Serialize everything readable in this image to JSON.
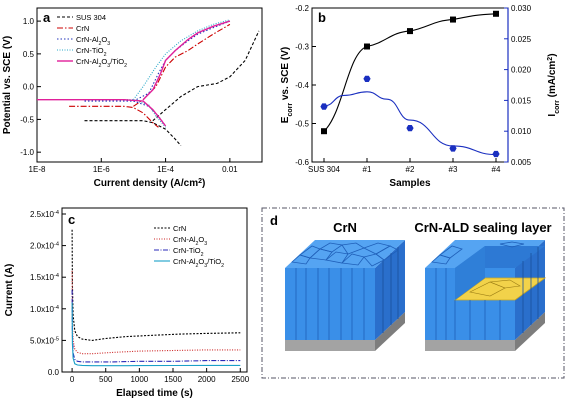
{
  "chart_data": [
    {
      "id": "a",
      "type": "line",
      "panel_label": "a",
      "xlabel": "Current density (A/cm",
      "xlabel_sup": "2",
      "xlabel_end": ")",
      "ylabel": "Potential vs. SCE (V)",
      "xscale": "log",
      "xlim": [
        1e-08,
        0.1
      ],
      "ylim": [
        -1.15,
        1.2
      ],
      "xticks": [
        {
          "v": 1e-08,
          "t": "1E-8"
        },
        {
          "v": 1e-06,
          "t": "1E-6"
        },
        {
          "v": 0.0001,
          "t": "1E-4"
        },
        {
          "v": 0.01,
          "t": "0.01"
        }
      ],
      "yticks": [
        {
          "v": -1.0,
          "t": "-1.0"
        },
        {
          "v": -0.5,
          "t": "-0.5"
        },
        {
          "v": 0.0,
          "t": "0.0"
        },
        {
          "v": 0.5,
          "t": "0.5"
        },
        {
          "v": 1.0,
          "t": "1.0"
        }
      ],
      "legend": "top-left",
      "series": [
        {
          "name": "SUS 304",
          "color": "#000000",
          "dash": "3,2",
          "x": [
            3e-07,
            3e-06,
            1e-05,
            2e-05,
            4e-05,
            0.0001,
            0.0002,
            0.0003
          ],
          "y": [
            -0.52,
            -0.52,
            -0.52,
            -0.52,
            -0.55,
            -0.65,
            -0.8,
            -0.9
          ],
          "x2": [
            4e-05,
            0.0001,
            0.0003,
            0.001,
            0.004,
            0.01,
            0.03,
            0.08
          ],
          "y2": [
            -0.52,
            -0.35,
            -0.15,
            0.0,
            0.05,
            0.15,
            0.4,
            0.85
          ]
        },
        {
          "name": "CrN",
          "color": "#cc0000",
          "dash": "6,2,1.5,2",
          "x": [
            1e-07,
            1e-06,
            5e-06,
            1e-05,
            2e-05,
            4e-05,
            6e-05
          ],
          "y": [
            -0.3,
            -0.3,
            -0.3,
            -0.32,
            -0.4,
            -0.55,
            -0.62
          ],
          "x2": [
            1e-05,
            2e-05,
            5e-05,
            0.0001,
            0.0002,
            0.0005,
            0.001,
            0.003,
            0.01
          ],
          "y2": [
            -0.3,
            -0.2,
            0.0,
            0.3,
            0.45,
            0.55,
            0.65,
            0.8,
            0.95
          ]
        },
        {
          "name": "CrN-Al",
          "sub": "2",
          "name2": "O",
          "sub2": "3",
          "color": "#2233bb",
          "dash": "1.5,2",
          "x": [
            3e-07,
            2e-06,
            1e-05,
            3e-05,
            6e-05,
            0.0001
          ],
          "y": [
            -0.22,
            -0.22,
            -0.22,
            -0.3,
            -0.45,
            -0.6
          ],
          "x2": [
            1e-05,
            3e-05,
            6e-05,
            0.0001,
            0.0002,
            0.0005,
            0.001,
            0.003,
            0.01
          ],
          "y2": [
            -0.22,
            -0.1,
            0.2,
            0.4,
            0.55,
            0.7,
            0.8,
            0.9,
            1.0
          ]
        },
        {
          "name": "CrN-TiO",
          "sub": "2",
          "color": "#2aa8c8",
          "dash": "1,1.5",
          "x": [
            3e-07,
            2e-06,
            1e-05,
            3e-05,
            5e-05,
            0.0001
          ],
          "y": [
            -0.2,
            -0.2,
            -0.2,
            -0.28,
            -0.45,
            -0.62
          ],
          "x2": [
            1e-05,
            2e-05,
            5e-05,
            0.0001,
            0.0003,
            0.001,
            0.003,
            0.01
          ],
          "y2": [
            -0.2,
            0.0,
            0.3,
            0.5,
            0.7,
            0.85,
            0.95,
            1.02
          ]
        },
        {
          "name": "CrN-Al",
          "sub": "2",
          "name2": "O",
          "sub2": "3",
          "name3": "/TiO",
          "sub3": "2",
          "color": "#e0209a",
          "dash": "",
          "x": [
            1e-08,
            1e-07,
            1e-06,
            5e-06,
            2e-05,
            4e-05,
            7e-05,
            0.0001
          ],
          "y": [
            -0.2,
            -0.2,
            -0.2,
            -0.2,
            -0.22,
            -0.35,
            -0.5,
            -0.6
          ],
          "x2": [
            2e-05,
            4e-05,
            7e-05,
            0.0001,
            0.0002,
            0.0005,
            0.001,
            0.003,
            0.01
          ],
          "y2": [
            -0.2,
            -0.05,
            0.2,
            0.4,
            0.55,
            0.72,
            0.82,
            0.92,
            1.0
          ]
        }
      ]
    },
    {
      "id": "b",
      "type": "scatter",
      "panel_label": "b",
      "categories": [
        "SUS 304",
        "#1",
        "#2",
        "#3",
        "#4"
      ],
      "xlabel": "Samples",
      "ylabel_left": "E",
      "ylabel_left_sub": "corr",
      "ylabel_left_end": " vs. SCE (V)",
      "ylabel_right": "I",
      "ylabel_right_sub": "corr",
      "ylabel_right_end": " (mA/cm",
      "ylabel_right_sup": "2",
      "ylabel_right_close": ")",
      "ylim_left": [
        -0.6,
        -0.2
      ],
      "ylim_right": [
        0.005,
        0.03
      ],
      "yticks_left": [
        {
          "v": -0.6,
          "t": "-0.6"
        },
        {
          "v": -0.5,
          "t": "-0.5"
        },
        {
          "v": -0.4,
          "t": "-0.4"
        },
        {
          "v": -0.3,
          "t": "-0.3"
        },
        {
          "v": -0.2,
          "t": "-0.2"
        }
      ],
      "yticks_right": [
        {
          "v": 0.005,
          "t": "0.005"
        },
        {
          "v": 0.01,
          "t": "0.010"
        },
        {
          "v": 0.015,
          "t": "0.015"
        },
        {
          "v": 0.02,
          "t": "0.020"
        },
        {
          "v": 0.025,
          "t": "0.025"
        },
        {
          "v": 0.03,
          "t": "0.030"
        }
      ],
      "series": [
        {
          "axis": "left",
          "color": "#000000",
          "marker": "square",
          "values": [
            -0.52,
            -0.3,
            -0.26,
            -0.23,
            -0.215
          ]
        },
        {
          "axis": "right",
          "color": "#1a2fc0",
          "marker": "hexagon",
          "values": [
            0.014,
            0.0185,
            0.0105,
            0.0072,
            0.0063
          ]
        }
      ],
      "right_axis_color": "#1a2fc0"
    },
    {
      "id": "c",
      "type": "line",
      "panel_label": "c",
      "xlabel": "Elapsed time (s)",
      "ylabel": "Current (A)",
      "xlim": [
        -150,
        2600
      ],
      "ylim": [
        0,
        0.00025
      ],
      "xticks": [
        {
          "v": 0,
          "t": "0"
        },
        {
          "v": 500,
          "t": "500"
        },
        {
          "v": 1000,
          "t": "1000"
        },
        {
          "v": 1500,
          "t": "1500"
        },
        {
          "v": 2000,
          "t": "2000"
        },
        {
          "v": 2500,
          "t": "2500"
        }
      ],
      "yticks": [
        {
          "v": 0,
          "t": "0.0",
          "exp": ""
        },
        {
          "v": 5e-05,
          "t": "5.0x10",
          "exp": "-5"
        },
        {
          "v": 0.0001,
          "t": "1.0x10",
          "exp": "-4"
        },
        {
          "v": 0.00015,
          "t": "1.5x10",
          "exp": "-4"
        },
        {
          "v": 0.0002,
          "t": "2.0x10",
          "exp": "-4"
        },
        {
          "v": 0.00025,
          "t": "2.5x10",
          "exp": "-4"
        }
      ],
      "legend": "top-right",
      "series": [
        {
          "name": "CrN",
          "color": "#000000",
          "dash": "2,1.5",
          "x": [
            0,
            5,
            15,
            40,
            80,
            150,
            300,
            500,
            800,
            1200,
            1600,
            2000,
            2500
          ],
          "y": [
            0.000225,
            0.00014,
            9e-05,
            6.5e-05,
            5.6e-05,
            5.2e-05,
            5e-05,
            5.3e-05,
            5.6e-05,
            5.8e-05,
            6e-05,
            6.1e-05,
            6.2e-05
          ]
        },
        {
          "name": "CrN-Al",
          "sub": "2",
          "name2": "O",
          "sub2": "3",
          "color": "#cc2222",
          "dash": "1,1.5",
          "x": [
            0,
            5,
            15,
            40,
            80,
            150,
            300,
            600,
            1000,
            1500,
            2000,
            2500
          ],
          "y": [
            0.00016,
            8e-05,
            5e-05,
            3.6e-05,
            3.1e-05,
            2.9e-05,
            2.9e-05,
            3.1e-05,
            3.3e-05,
            3.4e-05,
            3.5e-05,
            3.5e-05
          ]
        },
        {
          "name": "CrN-TiO",
          "sub": "2",
          "color": "#2a2ab8",
          "dash": "5,1.5,1,1.5",
          "x": [
            0,
            5,
            15,
            40,
            80,
            150,
            300,
            600,
            1000,
            1500,
            2000,
            2500
          ],
          "y": [
            0.00013,
            6e-05,
            3e-05,
            2e-05,
            1.7e-05,
            1.6e-05,
            1.6e-05,
            1.6e-05,
            1.7e-05,
            1.7e-05,
            1.8e-05,
            1.8e-05
          ]
        },
        {
          "name": "CrN-Al",
          "sub": "2",
          "name2": "O",
          "sub2": "3",
          "name3": "/TiO",
          "sub3": "2",
          "color": "#1aa0c8",
          "dash": "",
          "x": [
            0,
            5,
            15,
            40,
            80,
            150,
            300,
            600,
            1000,
            1500,
            2000,
            2500
          ],
          "y": [
            0.00011,
            4.5e-05,
            2.2e-05,
            1.3e-05,
            1.1e-05,
            1.05e-05,
            1e-05,
            1e-05,
            1.02e-05,
            1.03e-05,
            1.04e-05,
            1.05e-05
          ]
        }
      ]
    }
  ],
  "panel_d": {
    "panel_label": "d",
    "left_title": "CrN",
    "right_title": "CrN-ALD sealing layer",
    "colors": {
      "coating": "#3a8fe8",
      "coating_dark": "#1f5fb8",
      "substrate": "#8a8a8a",
      "seal": "#f2d24a"
    }
  }
}
